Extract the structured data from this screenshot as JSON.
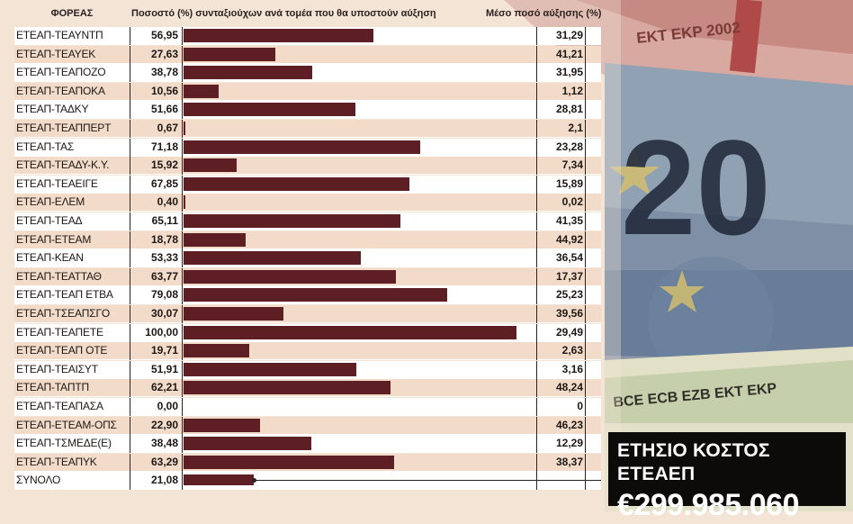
{
  "header": {
    "col_agency": "ΦΟΡΕΑΣ",
    "col_pct": "Ποσοστό (%) συνταξιούχων ανά τομέα που θα υποστούν αύξηση",
    "col_avg": "Μέσο ποσό αύξησης (%)"
  },
  "chart_data": {
    "type": "bar",
    "orientation": "horizontal",
    "categories": [
      "ΕΤΕΑΠ-ΤΕΑΥΝΤΠ",
      "ΕΤΕΑΠ-ΤΕΑΥΕΚ",
      "ΕΤΕΑΠ-ΤΕΑΠΟΖΟ",
      "ΕΤΕΑΠ-ΤΕΑΠΟΚΑ",
      "ΕΤΕΑΠ-ΤΑΔΚΥ",
      "ΕΤΕΑΠ-ΤΕΑΠΠΕΡΤ",
      "ΕΤΕΑΠ-ΤΑΣ",
      "ΕΤΕΑΠ-ΤΕΑΔΥ-Κ.Υ.",
      "ΕΤΕΑΠ-ΤΕΑΕΙΓΕ",
      "ΕΤΕΑΠ-ΕΛΕΜ",
      "ΕΤΕΑΠ-ΤΕΑΔ",
      "ΕΤΕΑΠ-ΕΤΕΑΜ",
      "ΕΤΕΑΠ-ΚΕΑΝ",
      "ΕΤΕΑΠ-ΤΕΑΤΤΑΘ",
      "ΕΤΕΑΠ-ΤΕΑΠ ΕΤΒΑ",
      "ΕΤΕΑΠ-ΤΣΕΑΠΣΓΟ",
      "ΕΤΕΑΠ-ΤΕΑΠΕΤΕ",
      "ΕΤΕΑΠ-ΤΕΑΠ ΟΤΕ",
      "ΕΤΕΑΠ-ΤΕΑΙΣΥΤ",
      "ΕΤΕΑΠ-ΤΑΠΤΠ",
      "ΕΤΕΑΠ-ΤΕΑΠΑΣΑ",
      "ΕΤΕΑΠ-ΕΤΕΑΜ-ΟΠΣ",
      "ΕΤΕΑΠ-ΤΣΜΕΔΕ(Ε)",
      "ΕΤΕΑΠ-ΤΕΑΠΥΚ",
      "ΣΥΝΟΛΟ"
    ],
    "values": [
      56.95,
      27.63,
      38.78,
      10.56,
      51.66,
      0.67,
      71.18,
      15.92,
      67.85,
      0.4,
      65.11,
      18.78,
      53.33,
      63.77,
      79.08,
      30.07,
      100.0,
      19.71,
      51.91,
      62.21,
      0.0,
      22.9,
      38.48,
      63.29,
      21.08
    ],
    "value_labels": [
      "56,95",
      "27,63",
      "38,78",
      "10,56",
      "51,66",
      "0,67",
      "71,18",
      "15,92",
      "67,85",
      "0,40",
      "65,11",
      "18,78",
      "53,33",
      "63,77",
      "79,08",
      "30,07",
      "100,00",
      "19,71",
      "51,91",
      "62,21",
      "0,00",
      "22,90",
      "38,48",
      "63,29",
      "21,08"
    ],
    "avg_increase": [
      "31,29",
      "41,21",
      "31,95",
      "1,12",
      "28,81",
      "2,1",
      "23,28",
      "7,34",
      "15,89",
      "0,02",
      "41,35",
      "44,92",
      "36,54",
      "17,37",
      "25,23",
      "39,56",
      "29,49",
      "2,63",
      "3,16",
      "48,24",
      "0",
      "46,23",
      "12,29",
      "38,37",
      ""
    ],
    "xlim": [
      0,
      100
    ],
    "bar_color": "#5e1f24"
  },
  "cost_box": {
    "title": "ΕΤΗΣΙΟ ΚΟΣΤΟΣ ΕΤΕΑΕΠ",
    "amount": "€299.985.060"
  },
  "banknote": {
    "denomination": "20",
    "micro_text": "EKT EKP 2002",
    "band_text": "BCE ECB EZB EKT EKP"
  }
}
